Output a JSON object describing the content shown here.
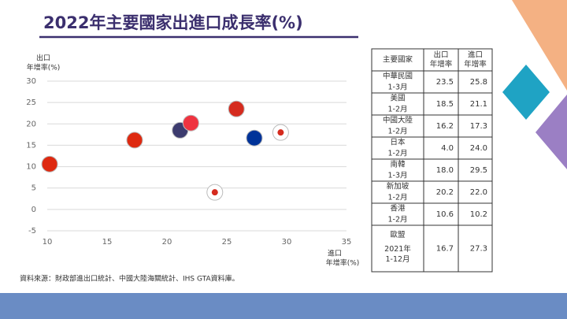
{
  "chart_data": {
    "type": "scatter",
    "title": "2022年主要國家出進口成長率(%)",
    "y_label": [
      "出口",
      "年增率(%)"
    ],
    "x_label": [
      "進口",
      "年增率(%)"
    ],
    "categories": [
      "中華民國",
      "美國",
      "中國大陸",
      "日本",
      "南韓",
      "新加坡",
      "香港",
      "歐盟"
    ],
    "periods": [
      "1-3月",
      "1-2月",
      "1-2月",
      "1-2月",
      "1-3月",
      "1-2月",
      "1-2月",
      "2021年 1-12月"
    ],
    "x": [
      25.8,
      21.1,
      17.3,
      24,
      29.5,
      22,
      10.2,
      27.3
    ],
    "x_labels": [
      "25.8",
      "21.1",
      "17.3",
      "24.0",
      "29.5",
      "22.0",
      "10.2",
      "27.3"
    ],
    "values": [
      23.5,
      18.5,
      16.2,
      4,
      18,
      20.2,
      10.6,
      16.7
    ],
    "value_labels": [
      "23.5",
      "18.5",
      "16.2",
      "4.0",
      "18.0",
      "20.2",
      "10.6",
      "16.7"
    ],
    "colors": [
      "#d52b1e",
      "#3c3b6e",
      "#de2910",
      "#ffffff",
      "#ffffff",
      "#ef3340",
      "#de2910",
      "#003399"
    ],
    "xlim": [
      10,
      35
    ],
    "xticks": [
      10,
      15,
      20,
      25,
      30,
      35
    ],
    "ylim": [
      -5,
      30
    ],
    "yticks": [
      -5,
      0,
      5,
      10,
      15,
      20,
      25,
      30
    ],
    "grid": true,
    "table_headers": [
      [
        "主要國家"
      ],
      [
        "出口",
        "年增率"
      ],
      [
        "進口",
        "年增率"
      ]
    ],
    "source": "資料來源：財政部進出口統計、中國大陸海關統計、IHS GTA資料庫。"
  }
}
